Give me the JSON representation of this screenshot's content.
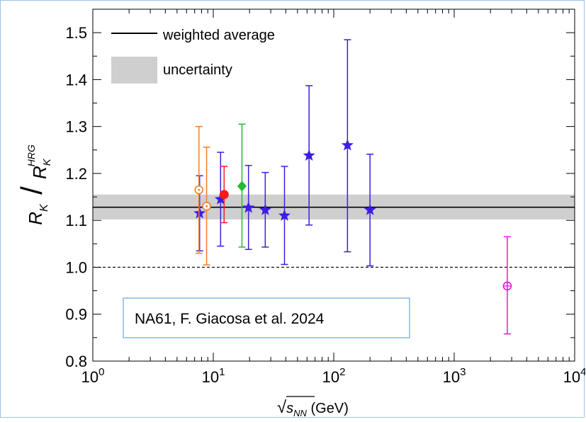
{
  "chart_data": {
    "type": "scatter",
    "xscale": "log",
    "xlim": [
      1,
      10000
    ],
    "ylim": [
      0.8,
      1.55
    ],
    "x_ticks": [
      {
        "value": 1,
        "base": "10",
        "exp": "0"
      },
      {
        "value": 10,
        "base": "10",
        "exp": "1"
      },
      {
        "value": 100,
        "base": "10",
        "exp": "2"
      },
      {
        "value": 1000,
        "base": "10",
        "exp": "3"
      },
      {
        "value": 10000,
        "base": "10",
        "exp": "4"
      }
    ],
    "y_ticks": [
      {
        "value": 0.8,
        "label": "0.8"
      },
      {
        "value": 0.9,
        "label": "0.9"
      },
      {
        "value": 1.0,
        "label": "1.0"
      },
      {
        "value": 1.1,
        "label": "1.1"
      },
      {
        "value": 1.2,
        "label": "1.2"
      },
      {
        "value": 1.3,
        "label": "1.3"
      },
      {
        "value": 1.4,
        "label": "1.4"
      },
      {
        "value": 1.5,
        "label": "1.5"
      }
    ],
    "xlabel": {
      "root": "√",
      "s": "s",
      "sub": "NN",
      "unit": " (GeV)"
    },
    "ylabel": {
      "num": "R",
      "num_sub": "K",
      "den": "R",
      "den_sub": "K",
      "den_sup": "HRG"
    },
    "weighted_average": 1.128,
    "uncertainty": [
      1.102,
      1.155
    ],
    "reference_line": 1.0,
    "legend": {
      "placement": "top-left",
      "items": [
        {
          "label": "weighted average"
        },
        {
          "label": "uncertainty"
        }
      ]
    },
    "annotation": "NA61, F. Giacosa et al. 2024",
    "series": [
      {
        "color": "#3a1ee6",
        "marker": "star",
        "points": [
          {
            "x": 7.7,
            "y": 1.115,
            "lo": 1.035,
            "hi": 1.195
          },
          {
            "x": 11.5,
            "y": 1.145,
            "lo": 1.045,
            "hi": 1.245
          },
          {
            "x": 19.6,
            "y": 1.127,
            "lo": 1.038,
            "hi": 1.217
          },
          {
            "x": 27,
            "y": 1.122,
            "lo": 1.043,
            "hi": 1.202
          },
          {
            "x": 39,
            "y": 1.11,
            "lo": 1.006,
            "hi": 1.215
          },
          {
            "x": 62.4,
            "y": 1.238,
            "lo": 1.09,
            "hi": 1.387
          },
          {
            "x": 130,
            "y": 1.26,
            "lo": 1.033,
            "hi": 1.485
          },
          {
            "x": 200,
            "y": 1.122,
            "lo": 1.003,
            "hi": 1.241
          }
        ]
      },
      {
        "color": "#f07c2a",
        "marker": "open-circle",
        "points": [
          {
            "x": 7.6,
            "y": 1.165,
            "lo": 1.03,
            "hi": 1.3
          },
          {
            "x": 8.8,
            "y": 1.13,
            "lo": 1.005,
            "hi": 1.256
          }
        ]
      },
      {
        "color": "#ff1a1a",
        "marker": "filled-circle",
        "points": [
          {
            "x": 12.3,
            "y": 1.155,
            "lo": 1.095,
            "hi": 1.215
          }
        ]
      },
      {
        "color": "#22bb33",
        "marker": "diamond",
        "points": [
          {
            "x": 17.3,
            "y": 1.173,
            "lo": 1.043,
            "hi": 1.305
          }
        ]
      },
      {
        "color": "#e816e0",
        "marker": "crossed-circle",
        "points": [
          {
            "x": 2760,
            "y": 0.96,
            "lo": 0.858,
            "hi": 1.065
          }
        ]
      }
    ]
  }
}
